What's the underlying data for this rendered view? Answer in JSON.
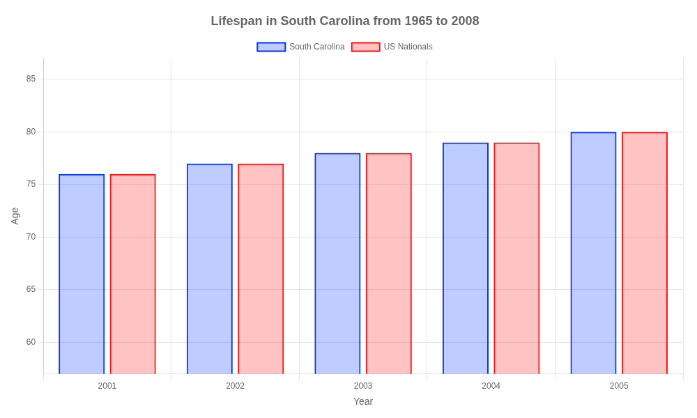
{
  "chart_data": {
    "type": "bar",
    "title": "Lifespan in South Carolina from 1965 to 2008",
    "xlabel": "Year",
    "ylabel": "Age",
    "categories": [
      "2001",
      "2002",
      "2003",
      "2004",
      "2005"
    ],
    "series": [
      {
        "name": "South Carolina",
        "color": "#0033ff",
        "values": [
          76,
          77,
          78,
          79,
          80
        ]
      },
      {
        "name": "US Nationals",
        "color": "#ff1111",
        "values": [
          76,
          77,
          78,
          79,
          80
        ]
      }
    ],
    "ylim": [
      57,
      87
    ],
    "yticks": [
      60,
      65,
      70,
      75,
      80,
      85
    ],
    "grid": true,
    "legend": "top"
  }
}
